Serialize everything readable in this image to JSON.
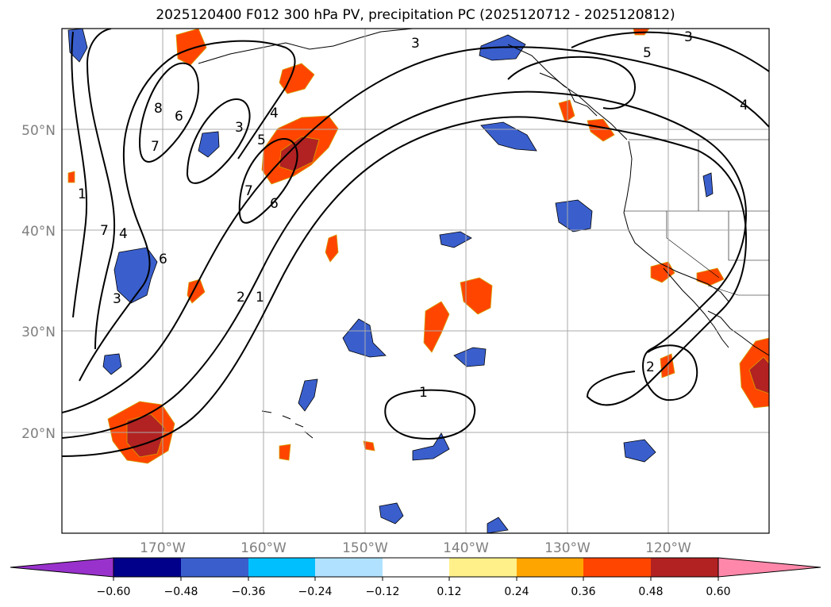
{
  "title": "2025120400 F012 300 hPa PV, precipitation PC (2025120712 - 2025120812)",
  "map": {
    "lat_labels": [
      "50°N",
      "40°N",
      "30°N",
      "20°N"
    ],
    "lon_labels": [
      "170°W",
      "160°W",
      "150°W",
      "140°W",
      "130°W",
      "120°W"
    ],
    "pv_contour_levels": [
      1,
      2,
      3,
      4,
      5,
      6,
      7,
      8
    ]
  },
  "colorbar": {
    "tick_labels": [
      "−0.60",
      "−0.48",
      "−0.36",
      "−0.24",
      "−0.12",
      "0.12",
      "0.24",
      "0.36",
      "0.48",
      "0.60"
    ],
    "colors": [
      "#9932cc",
      "#00008b",
      "#3a5fcd",
      "#00bfff",
      "#b0e2ff",
      "#ffffff",
      "#fff08a",
      "#ffa500",
      "#ff4500",
      "#b22222",
      "#ff88aa",
      "#ff88aa"
    ],
    "positive_colors": [
      "#ffe88a",
      "#ffa500",
      "#ff4500",
      "#b22222"
    ],
    "negative_colors": [
      "#b0e2ff",
      "#00bfff",
      "#3a5fcd"
    ]
  }
}
